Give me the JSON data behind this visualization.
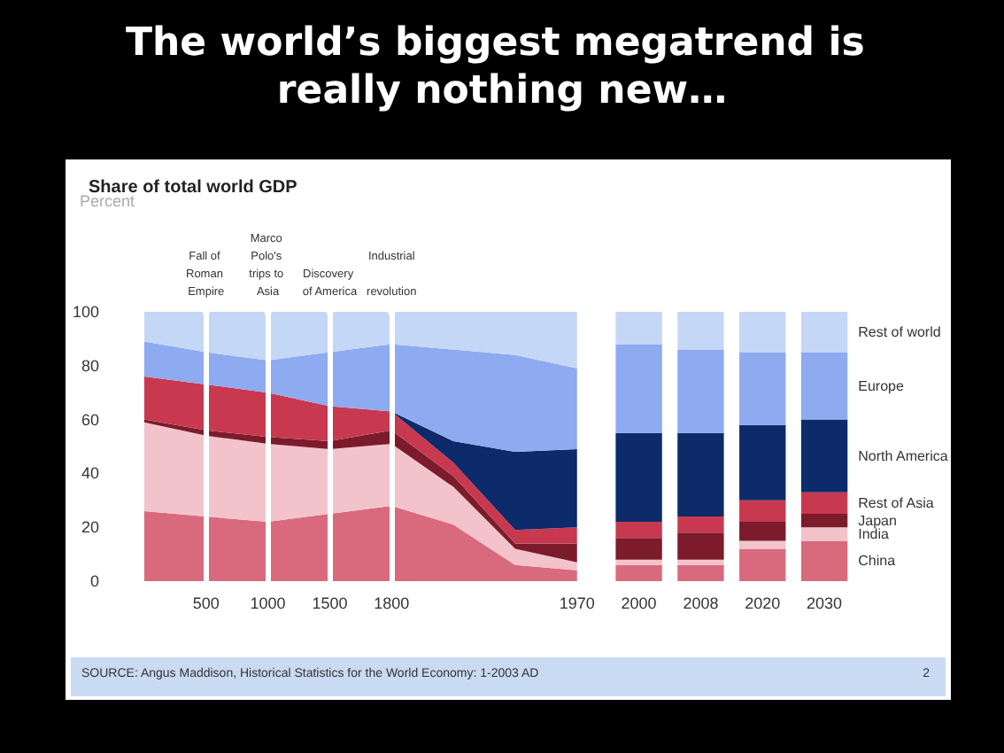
{
  "chart_data": {
    "type": "area",
    "title": "The world’s biggest megatrend is really nothing new…",
    "subtitle": "Share of total world GDP",
    "categories": [
      null,
      "500",
      "1000",
      "1500",
      "1800",
      null,
      null,
      "1970",
      "2000",
      "2008",
      "2020",
      "2030"
    ],
    "stacked": true,
    "ylim": [
      0,
      100
    ],
    "yticks": [
      0,
      20,
      40,
      60,
      80,
      100
    ],
    "grid": false,
    "legend": false,
    "series": [
      {
        "color": "#d96a7d",
        "values": [
          26,
          24,
          22,
          25,
          28,
          21,
          6,
          4,
          null,
          null,
          null,
          null
        ]
      },
      {
        "color": "#f2c3cb",
        "values": [
          33,
          30,
          29,
          24,
          23,
          14,
          6,
          3,
          null,
          null,
          null,
          null
        ]
      },
      {
        "color": "#7b1b2c",
        "values": [
          1,
          2,
          2.5,
          3,
          5,
          4,
          2,
          7,
          null,
          null,
          null,
          null
        ]
      },
      {
        "color": "#c8394f",
        "values": [
          16,
          17,
          16.5,
          13,
          7,
          5,
          5,
          6,
          null,
          null,
          null,
          null
        ]
      },
      {
        "color": "#0d2a6b",
        "values": [
          0,
          0,
          0,
          0,
          0,
          8,
          29,
          29,
          null,
          null,
          null,
          null
        ]
      },
      {
        "color": "#8eaaf0",
        "values": [
          13,
          12,
          12,
          20,
          25,
          34,
          36,
          30,
          null,
          null,
          null,
          null
        ]
      },
      {
        "color": "#c4d7f7",
        "values": [
          11,
          15,
          18,
          15,
          12,
          14,
          16,
          21,
          null,
          null,
          null,
          null
        ]
      },
      {
        "type": "bar",
        "name": "China",
        "color": "#d96a7d",
        "values": [
          null,
          null,
          null,
          null,
          null,
          null,
          null,
          null,
          6,
          6,
          12,
          15
        ]
      },
      {
        "type": "bar",
        "name": "India",
        "color": "#f2c3cb",
        "values": [
          null,
          null,
          null,
          null,
          null,
          null,
          null,
          null,
          2,
          2,
          3,
          5
        ]
      },
      {
        "type": "bar",
        "name": "Japan",
        "color": "#7b1b2c",
        "values": [
          null,
          null,
          null,
          null,
          null,
          null,
          null,
          null,
          8,
          10,
          7,
          5
        ]
      },
      {
        "type": "bar",
        "name": "Rest of Asia",
        "color": "#c8394f",
        "values": [
          null,
          null,
          null,
          null,
          null,
          null,
          null,
          null,
          6,
          6,
          8,
          8
        ]
      },
      {
        "type": "bar",
        "name": "North America",
        "color": "#0d2a6b",
        "values": [
          null,
          null,
          null,
          null,
          null,
          null,
          null,
          null,
          33,
          31,
          28,
          27
        ]
      },
      {
        "type": "bar",
        "name": "Europe",
        "color": "#8eaaf0",
        "values": [
          null,
          null,
          null,
          null,
          null,
          null,
          null,
          null,
          33,
          31,
          27,
          25
        ]
      },
      {
        "type": "bar",
        "name": "Rest of world",
        "color": "#c4d7f7",
        "values": [
          null,
          null,
          null,
          null,
          null,
          null,
          null,
          null,
          12,
          14,
          15,
          15
        ]
      }
    ],
    "ref_lines": [
      {
        "axis": "x",
        "value": "500",
        "label": "Fall of Roman Empire",
        "color": "#ffffff"
      },
      {
        "axis": "x",
        "value": "1000",
        "label": "Marco Polo's trips to Asia",
        "color": "#ffffff"
      },
      {
        "axis": "x",
        "value": "1500",
        "label": "Discovery of America",
        "color": "#ffffff"
      },
      {
        "axis": "x",
        "value": "1800",
        "label": "Industrial revolution",
        "color": "#ffffff"
      }
    ],
    "annotations": [
      "Percent",
      "SOURCE: Angus Maddison, Historical Statistics for the World Economy: 1-2003 AD",
      "2"
    ]
  }
}
